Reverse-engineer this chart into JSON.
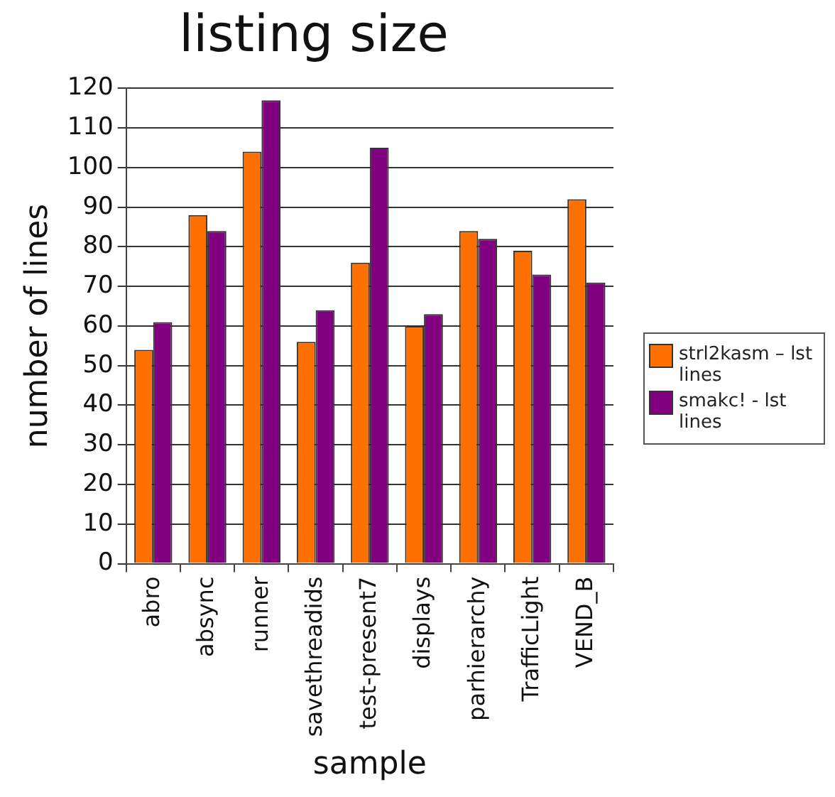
{
  "chart_data": {
    "type": "bar",
    "title": "listing size",
    "xlabel": "sample",
    "ylabel": "number of lines",
    "categories": [
      "abro",
      "absync",
      "runner",
      "savethreadids",
      "test-present7",
      "displays",
      "parhierarchy",
      "TrafficLight",
      "VEND_B"
    ],
    "series": [
      {
        "name": "strl2kasm – lst lines",
        "color": "#ff7000",
        "values": [
          54,
          88,
          104,
          56,
          76,
          60,
          84,
          79,
          92
        ]
      },
      {
        "name": "smakc! - lst lines",
        "color": "#800080",
        "values": [
          61,
          84,
          117,
          64,
          105,
          63,
          82,
          73,
          71
        ]
      }
    ],
    "ylim": [
      0,
      120
    ],
    "yticks": [
      0,
      10,
      20,
      30,
      40,
      50,
      60,
      70,
      80,
      90,
      100,
      110,
      120
    ],
    "grid": "y",
    "legend": "right"
  }
}
